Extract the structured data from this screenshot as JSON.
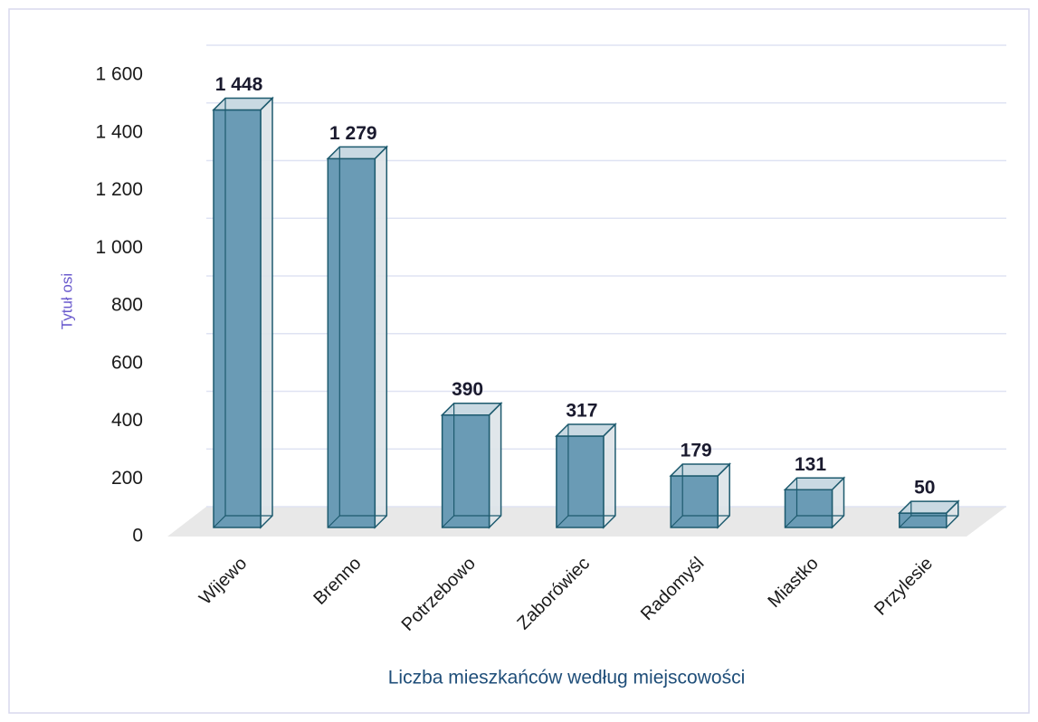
{
  "chart_data": {
    "type": "bar3d",
    "y_axis_title": "Tytuł osi",
    "x_axis_title": "Liczba mieszkańców według miejscowości",
    "categories": [
      "Wijewo",
      "Brenno",
      "Potrzebowo",
      "Zaborówiec",
      "Radomyśl",
      "Miastko",
      "Przylesie"
    ],
    "values": [
      1448,
      1279,
      390,
      317,
      179,
      131,
      50
    ],
    "value_labels": [
      "1 448",
      "1 279",
      "390",
      "317",
      "179",
      "131",
      "50"
    ],
    "color": "#6a9bb5",
    "ylim": [
      0,
      1600
    ],
    "yticks": [
      0,
      200,
      400,
      600,
      800,
      {
        "value": 1000,
        "label": "1 000"
      },
      {
        "value": 1200,
        "label": "1 200"
      },
      {
        "value": 1400,
        "label": "1 400"
      },
      {
        "value": 1600,
        "label": "1 600"
      }
    ],
    "grid": true
  }
}
